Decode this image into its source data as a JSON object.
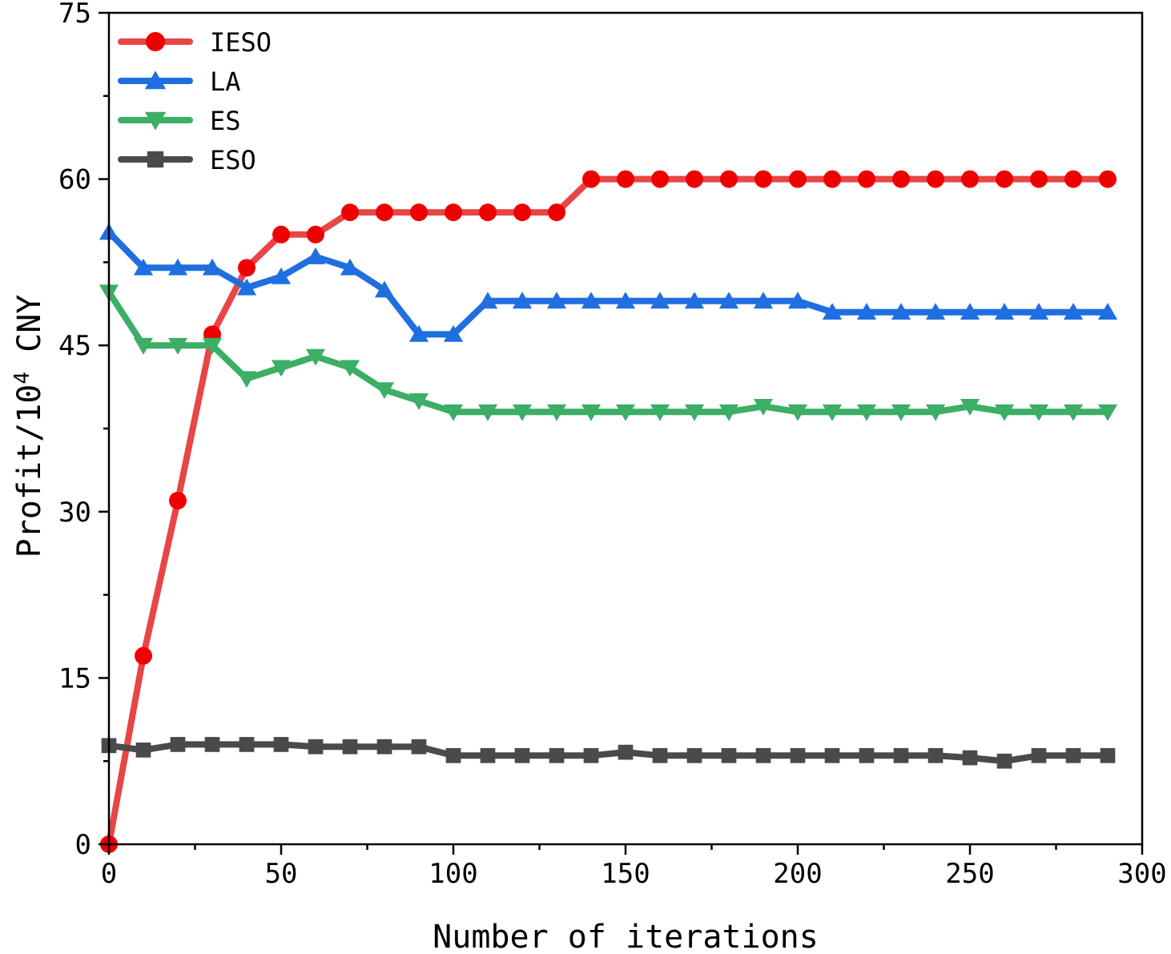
{
  "chart_data": {
    "type": "line",
    "title": "",
    "xlabel": "Number of iterations",
    "ylabel": {
      "prefix": "Profit/10",
      "superscript": "4",
      "suffix": " CNY"
    },
    "xlim": [
      0,
      300
    ],
    "ylim": [
      0,
      75
    ],
    "xticks": [
      0,
      50,
      100,
      150,
      200,
      250,
      300
    ],
    "yticks": [
      0,
      15,
      30,
      45,
      60,
      75
    ],
    "grid": false,
    "legend_position": "top-left",
    "x": [
      0,
      10,
      20,
      30,
      40,
      50,
      60,
      70,
      80,
      90,
      100,
      110,
      120,
      130,
      140,
      150,
      160,
      170,
      180,
      190,
      200,
      210,
      220,
      230,
      240,
      250,
      260,
      270,
      280,
      290
    ],
    "series": [
      {
        "name": "IESO",
        "color": "#e84545",
        "marker_color": "#ee0000",
        "marker": "circle",
        "values": [
          0,
          17,
          31,
          46,
          52,
          55,
          55,
          57,
          57,
          57,
          57,
          57,
          57,
          57,
          60,
          60,
          60,
          60,
          60,
          60,
          60,
          60,
          60,
          60,
          60,
          60,
          60,
          60,
          60,
          60
        ]
      },
      {
        "name": "LA",
        "color": "#1f6fe0",
        "marker_color": "#1f6fe0",
        "marker": "triangle-up",
        "values": [
          55.2,
          52,
          52,
          52,
          50.2,
          51.2,
          53,
          52,
          50,
          46,
          46,
          49,
          49,
          49,
          49,
          49,
          49,
          49,
          49,
          49,
          49,
          48,
          48,
          48,
          48,
          48,
          48,
          48,
          48,
          48
        ]
      },
      {
        "name": "ES",
        "color": "#3cae66",
        "marker_color": "#3cae66",
        "marker": "triangle-down",
        "values": [
          49.8,
          45,
          45,
          45,
          42,
          43,
          44,
          43,
          41,
          40,
          39,
          39,
          39,
          39,
          39,
          39,
          39,
          39,
          39,
          39.5,
          39,
          39,
          39,
          39,
          39,
          39.5,
          39,
          39,
          39,
          39
        ]
      },
      {
        "name": "ESO",
        "color": "#4a4a4a",
        "marker_color": "#4a4a4a",
        "marker": "square",
        "values": [
          8.9,
          8.5,
          9,
          9,
          9,
          9,
          8.8,
          8.8,
          8.8,
          8.8,
          8,
          8,
          8,
          8,
          8,
          8.3,
          8,
          8,
          8,
          8,
          8,
          8,
          8,
          8,
          8,
          7.8,
          7.5,
          8,
          8,
          8
        ]
      }
    ]
  }
}
